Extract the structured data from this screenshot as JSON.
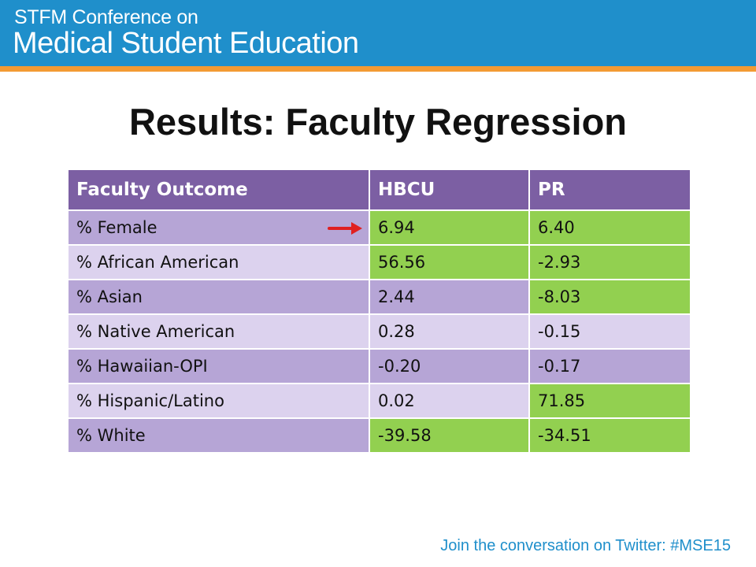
{
  "header": {
    "line1": "STFM Conference on",
    "line2": "Medical Student Education"
  },
  "title": "Results: Faculty Regression",
  "table": {
    "columns": [
      "Faculty Outcome",
      "HBCU",
      "PR"
    ],
    "rows": [
      {
        "label": "% Female",
        "hbcu": "6.94",
        "pr": "6.40"
      },
      {
        "label": "% African American",
        "hbcu": "56.56",
        "pr": "-2.93"
      },
      {
        "label": "% Asian",
        "hbcu": "2.44",
        "pr": "-8.03"
      },
      {
        "label": "% Native American",
        "hbcu": "0.28",
        "pr": "-0.15"
      },
      {
        "label": "% Hawaiian-OPI",
        "hbcu": "-0.20",
        "pr": "-0.17"
      },
      {
        "label": "% Hispanic/Latino",
        "hbcu": "0.02",
        "pr": "71.85"
      },
      {
        "label": "% White",
        "hbcu": "-39.58",
        "pr": "-34.51"
      }
    ]
  },
  "footer": "Join the conversation on Twitter: #MSE15",
  "colors": {
    "banner": "#1f8fcb",
    "accent_bar": "#f39a33",
    "header_row": "#7c5fa3",
    "highlight": "#92d050",
    "arrow": "#e02020"
  },
  "icons": [
    "right-arrow-icon"
  ]
}
